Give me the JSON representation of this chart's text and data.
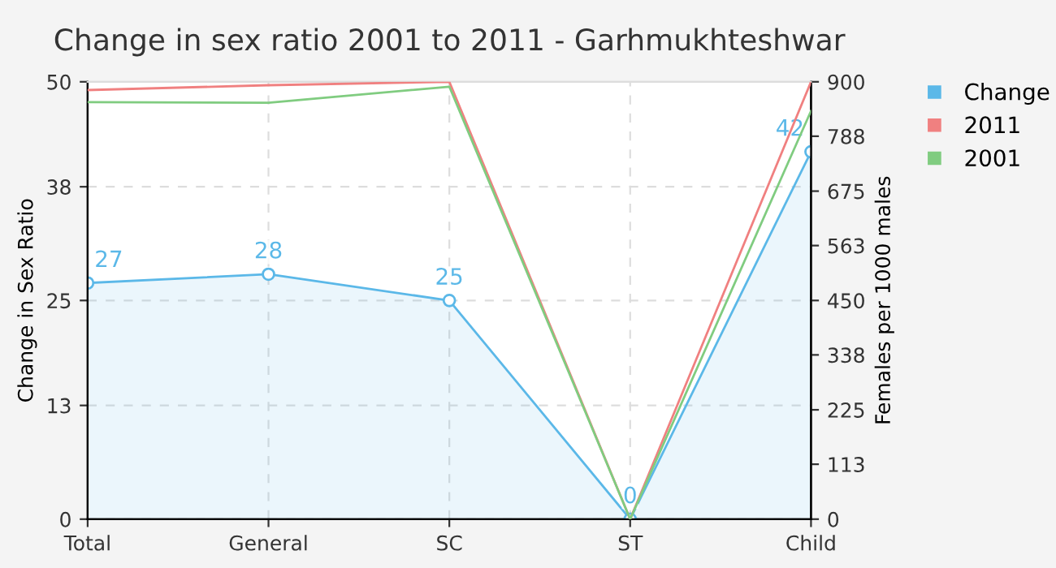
{
  "chart_data": {
    "type": "line",
    "title": "Change in sex ratio 2001 to 2011 - Garhmukhteshwar",
    "categories": [
      "Total",
      "General",
      "SC",
      "ST",
      "Child"
    ],
    "ylabel": "Change in Sex Ratio",
    "y2label": "Females per 1000 males",
    "ylim": [
      0,
      50
    ],
    "yticks": [
      0,
      13,
      25,
      38,
      50
    ],
    "y2lim": [
      0,
      900
    ],
    "y2ticks": [
      0,
      113,
      225,
      338,
      450,
      563,
      675,
      788,
      900
    ],
    "series": [
      {
        "name": "Change",
        "type": "area",
        "color": "#5bb8e8",
        "values": [
          27,
          28,
          25,
          0,
          42
        ],
        "value_labels": [
          "27",
          "28",
          "25",
          "0",
          "42"
        ],
        "marker": "circle"
      },
      {
        "name": "2011",
        "axis": "y2",
        "color": "#f08080",
        "values": [
          883,
          893,
          900,
          0,
          900
        ]
      },
      {
        "name": "2001",
        "axis": "y2",
        "color": "#80cc80",
        "values": [
          858,
          857,
          890,
          0,
          840
        ]
      }
    ],
    "grid": true,
    "legend": "top right"
  }
}
